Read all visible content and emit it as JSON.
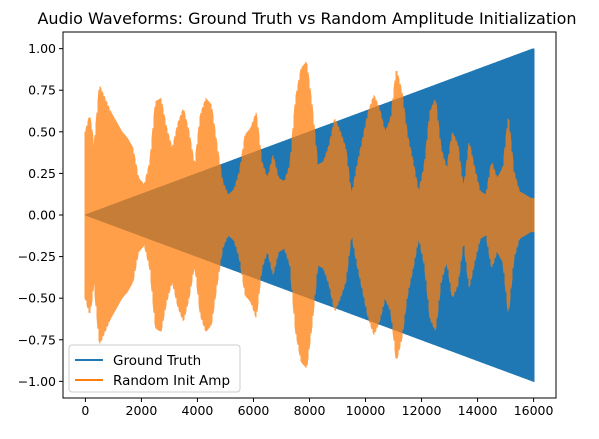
{
  "chart_data": {
    "type": "line",
    "title": "Audio Waveforms: Ground Truth vs Random Amplitude Initialization",
    "xlabel": "",
    "ylabel": "",
    "xlim": [
      -800,
      16800
    ],
    "ylim": [
      -1.1,
      1.1
    ],
    "x_ticks": [
      0,
      2000,
      4000,
      6000,
      8000,
      10000,
      12000,
      14000,
      16000
    ],
    "y_ticks": [
      -1.0,
      -0.75,
      -0.5,
      -0.25,
      0.0,
      0.25,
      0.5,
      0.75,
      1.0
    ],
    "grid": false,
    "legend_position": "lower-left",
    "series": [
      {
        "name": "Ground Truth",
        "color": "#1f77b4",
        "style": "dense oscillation with linearly growing amplitude envelope",
        "envelope": {
          "x": [
            0,
            16000
          ],
          "amplitude": [
            0.0,
            1.0
          ]
        }
      },
      {
        "name": "Random Init Amp",
        "color": "#ff7f0e",
        "alpha": 0.75,
        "style": "dense oscillation with randomly varying amplitude envelope",
        "envelope": {
          "x": [
            0,
            150,
            250,
            300,
            500,
            700,
            900,
            1100,
            1300,
            1500,
            1700,
            1900,
            2100,
            2300,
            2500,
            2700,
            2900,
            3100,
            3300,
            3500,
            3700,
            3900,
            4100,
            4300,
            4500,
            4700,
            4900,
            5100,
            5300,
            5500,
            5700,
            5900,
            6100,
            6300,
            6500,
            6700,
            6900,
            7100,
            7300,
            7500,
            7700,
            7900,
            8100,
            8300,
            8500,
            8700,
            8900,
            9100,
            9300,
            9500,
            9700,
            9900,
            10100,
            10300,
            10500,
            10700,
            10900,
            11100,
            11300,
            11500,
            11700,
            11900,
            12100,
            12300,
            12500,
            12700,
            12900,
            13100,
            13300,
            13500,
            13700,
            13900,
            14100,
            14300,
            14500,
            14700,
            14900,
            15100,
            15300,
            15500,
            15700,
            15900,
            16000
          ],
          "amplitude": [
            0.5,
            0.6,
            0.5,
            0.4,
            0.78,
            0.7,
            0.62,
            0.56,
            0.5,
            0.46,
            0.4,
            0.22,
            0.18,
            0.32,
            0.68,
            0.7,
            0.52,
            0.4,
            0.55,
            0.64,
            0.5,
            0.3,
            0.6,
            0.7,
            0.66,
            0.42,
            0.2,
            0.12,
            0.15,
            0.26,
            0.48,
            0.52,
            0.62,
            0.32,
            0.22,
            0.36,
            0.22,
            0.2,
            0.3,
            0.7,
            0.88,
            0.92,
            0.65,
            0.3,
            0.32,
            0.42,
            0.58,
            0.5,
            0.4,
            0.12,
            0.3,
            0.46,
            0.62,
            0.72,
            0.64,
            0.5,
            0.58,
            0.88,
            0.74,
            0.48,
            0.32,
            0.14,
            0.3,
            0.62,
            0.7,
            0.4,
            0.28,
            0.5,
            0.42,
            0.16,
            0.44,
            0.28,
            0.14,
            0.12,
            0.32,
            0.22,
            0.28,
            0.6,
            0.26,
            0.14,
            0.12,
            0.1,
            0.1
          ]
        }
      }
    ]
  }
}
